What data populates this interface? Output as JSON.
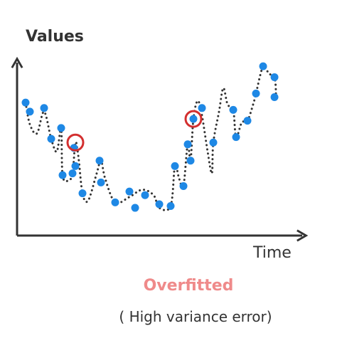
{
  "chart_data": {
    "type": "scatter",
    "title": "Overfitted",
    "subtitle": "( High variance error)",
    "xlabel": "Time",
    "ylabel": "Values",
    "grid": false,
    "colors": {
      "points": "#1e88e5",
      "curve": "#333333",
      "axes": "#333333",
      "highlight": "#d32f2f",
      "title": "#ef8a8a"
    },
    "xlim": [
      0,
      100
    ],
    "ylim": [
      0,
      100
    ],
    "points": [
      {
        "x": 3,
        "y": 67
      },
      {
        "x": 4.5,
        "y": 62
      },
      {
        "x": 9.5,
        "y": 64
      },
      {
        "x": 12,
        "y": 47
      },
      {
        "x": 15.5,
        "y": 53
      },
      {
        "x": 16,
        "y": 27
      },
      {
        "x": 19.5,
        "y": 28
      },
      {
        "x": 20,
        "y": 42
      },
      {
        "x": 20.5,
        "y": 32
      },
      {
        "x": 23,
        "y": 17
      },
      {
        "x": 29,
        "y": 35
      },
      {
        "x": 29.5,
        "y": 23
      },
      {
        "x": 34.5,
        "y": 12
      },
      {
        "x": 39.5,
        "y": 18
      },
      {
        "x": 41.5,
        "y": 9
      },
      {
        "x": 45,
        "y": 16
      },
      {
        "x": 50,
        "y": 11
      },
      {
        "x": 54,
        "y": 10
      },
      {
        "x": 55.5,
        "y": 32
      },
      {
        "x": 58.5,
        "y": 21
      },
      {
        "x": 60,
        "y": 44
      },
      {
        "x": 61,
        "y": 35
      },
      {
        "x": 62,
        "y": 58
      },
      {
        "x": 65,
        "y": 64
      },
      {
        "x": 69,
        "y": 45
      },
      {
        "x": 76,
        "y": 63
      },
      {
        "x": 77,
        "y": 48
      },
      {
        "x": 81,
        "y": 57
      },
      {
        "x": 84,
        "y": 72
      },
      {
        "x": 86.5,
        "y": 87
      },
      {
        "x": 90.5,
        "y": 81
      },
      {
        "x": 90.5,
        "y": 70
      }
    ],
    "fitted_curve": [
      [
        3,
        67
      ],
      [
        4.5,
        55
      ],
      [
        7,
        50
      ],
      [
        9.5,
        62
      ],
      [
        12,
        47
      ],
      [
        14,
        40
      ],
      [
        15.5,
        53
      ],
      [
        16,
        27
      ],
      [
        18,
        24
      ],
      [
        19.5,
        28
      ],
      [
        20.5,
        45
      ],
      [
        21.5,
        38
      ],
      [
        23,
        17
      ],
      [
        25,
        13
      ],
      [
        28,
        28
      ],
      [
        29.5,
        35
      ],
      [
        31,
        25
      ],
      [
        34.5,
        12
      ],
      [
        39.5,
        15
      ],
      [
        44,
        19
      ],
      [
        48,
        16
      ],
      [
        50,
        9
      ],
      [
        54,
        10
      ],
      [
        55.5,
        32
      ],
      [
        57,
        25
      ],
      [
        58.5,
        21
      ],
      [
        60,
        44
      ],
      [
        61,
        35
      ],
      [
        62,
        58
      ],
      [
        63.5,
        68
      ],
      [
        65,
        60
      ],
      [
        67,
        40
      ],
      [
        68.5,
        28
      ],
      [
        69,
        45
      ],
      [
        71,
        62
      ],
      [
        72.5,
        75
      ],
      [
        74,
        66
      ],
      [
        76,
        63
      ],
      [
        77,
        48
      ],
      [
        79,
        56
      ],
      [
        81,
        57
      ],
      [
        83,
        66
      ],
      [
        84,
        72
      ],
      [
        86.5,
        87
      ],
      [
        88.5,
        83
      ],
      [
        90.5,
        81
      ],
      [
        91,
        72
      ],
      [
        90.5,
        70
      ]
    ],
    "highlighted_points": [
      {
        "x": 20.5,
        "y": 45
      },
      {
        "x": 62,
        "y": 58
      }
    ]
  }
}
